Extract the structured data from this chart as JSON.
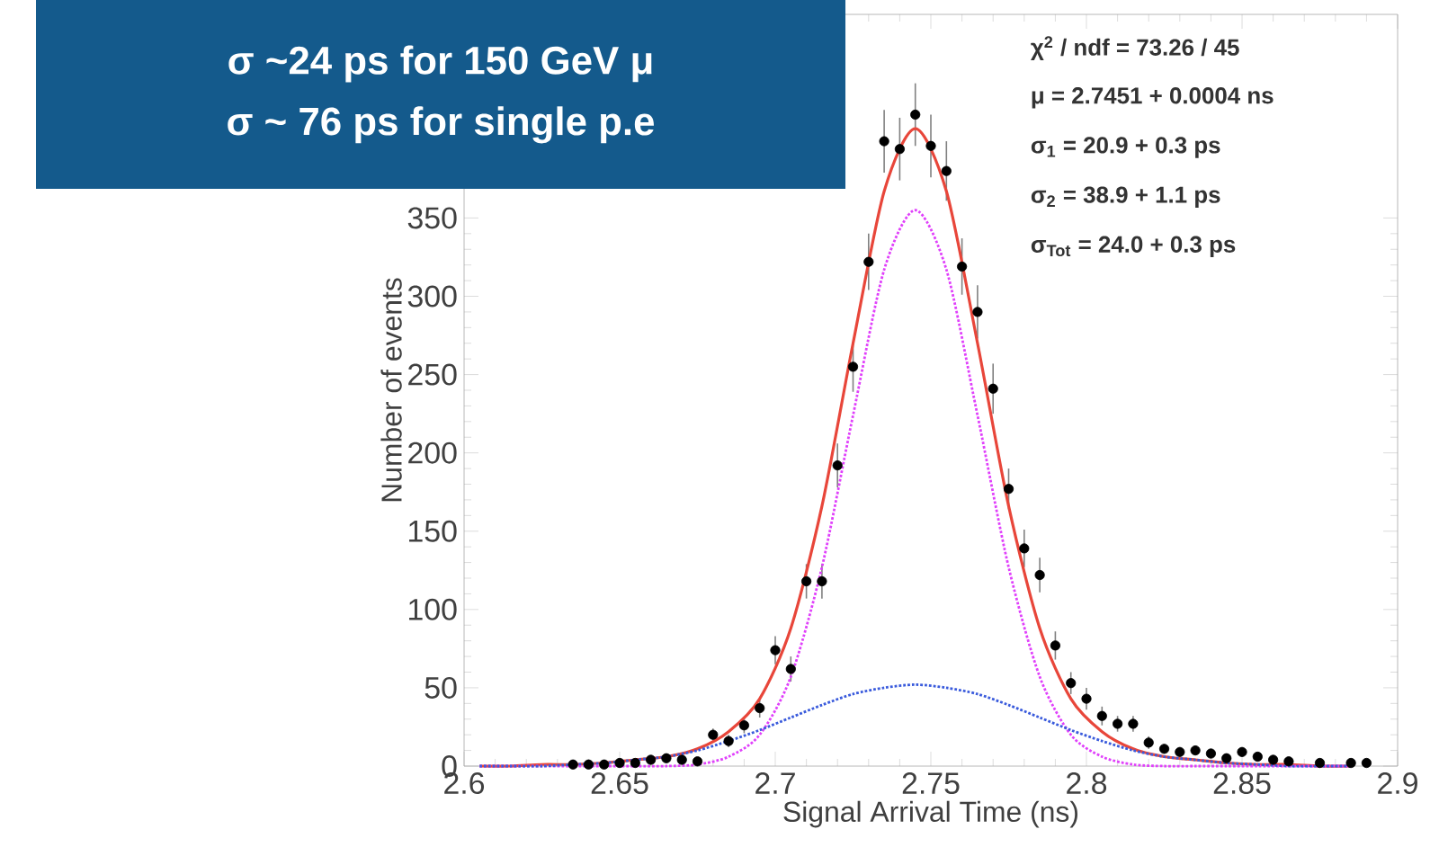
{
  "chart_data": {
    "type": "scatter",
    "title": "σ ~24 ps for 150 GeV μ",
    "subtitle": "σ ~ 76 ps for single p.e",
    "xlabel": "Signal Arrival Time (ns)",
    "ylabel": "Number of events",
    "xlim": [
      2.6,
      2.9
    ],
    "xticks": [
      2.6,
      2.65,
      2.7,
      2.75,
      2.8,
      2.85,
      2.9
    ],
    "ylim": [
      0,
      480
    ],
    "yticks": [
      0,
      50,
      100,
      150,
      200,
      250,
      300,
      350
    ],
    "grid": false,
    "annotations": [
      "χ$^{2}$ / ndf = 73.26 / 45",
      "μ = 2.7451 + 0.0004 ns",
      "σ$_{1}$ = 20.9 + 0.3 ps",
      "σ$_{2}$ = 38.9 + 1.1 ps",
      "σ$_{Tot}$ = 24.0 + 0.3 ps"
    ],
    "series": [
      {
        "color": "#000000",
        "marker": "circle",
        "x": [
          2.635,
          2.64,
          2.645,
          2.65,
          2.655,
          2.66,
          2.665,
          2.67,
          2.675,
          2.68,
          2.685,
          2.69,
          2.695,
          2.7,
          2.705,
          2.71,
          2.715,
          2.72,
          2.725,
          2.73,
          2.735,
          2.74,
          2.745,
          2.75,
          2.755,
          2.76,
          2.765,
          2.77,
          2.775,
          2.78,
          2.785,
          2.79,
          2.795,
          2.8,
          2.805,
          2.81,
          2.815,
          2.82,
          2.825,
          2.83,
          2.835,
          2.84,
          2.845,
          2.85,
          2.855,
          2.86,
          2.865,
          2.875,
          2.885,
          2.89
        ],
        "values": [
          1,
          1,
          1,
          2,
          2,
          4,
          5,
          4,
          3,
          20,
          16,
          26,
          37,
          74,
          62,
          118,
          118,
          192,
          255,
          322,
          399,
          394,
          416,
          396,
          380,
          319,
          290,
          241,
          177,
          139,
          122,
          77,
          53,
          43,
          32,
          27,
          27,
          15,
          11,
          9,
          10,
          8,
          5,
          9,
          6,
          4,
          3,
          2,
          2,
          2
        ],
        "errors": [
          null,
          null,
          null,
          null,
          null,
          2,
          2,
          2,
          2,
          4,
          4,
          5,
          6,
          9,
          8,
          11,
          11,
          14,
          16,
          18,
          20,
          20,
          20,
          20,
          19,
          18,
          17,
          16,
          13,
          12,
          11,
          9,
          7,
          7,
          6,
          5,
          5,
          4,
          3,
          3,
          3,
          3,
          2,
          3,
          2,
          2,
          2,
          null,
          null,
          null
        ]
      },
      {
        "type": "line",
        "color": "#e8463a",
        "marker": "none",
        "line_style": "solid",
        "x": [
          2.605,
          2.615,
          2.625,
          2.635,
          2.645,
          2.655,
          2.665,
          2.675,
          2.685,
          2.695,
          2.705,
          2.715,
          2.725,
          2.735,
          2.745,
          2.755,
          2.765,
          2.775,
          2.785,
          2.795,
          2.805,
          2.815,
          2.825,
          2.835,
          2.845,
          2.855,
          2.865,
          2.875,
          2.885
        ],
        "values": [
          0,
          0,
          1,
          1,
          2,
          4,
          6,
          11,
          22,
          43,
          88,
          166,
          270,
          367,
          407,
          367,
          270,
          166,
          88,
          43,
          22,
          11,
          6,
          4,
          2,
          1,
          1,
          0,
          0
        ]
      },
      {
        "type": "line",
        "color": "#e040fb",
        "marker": "none",
        "line_style": "dotted",
        "x": [
          2.605,
          2.615,
          2.625,
          2.635,
          2.645,
          2.655,
          2.665,
          2.675,
          2.685,
          2.695,
          2.705,
          2.715,
          2.725,
          2.735,
          2.745,
          2.755,
          2.765,
          2.775,
          2.785,
          2.795,
          2.805,
          2.815,
          2.825,
          2.835,
          2.845,
          2.855,
          2.865,
          2.875,
          2.885
        ],
        "values": [
          0,
          0,
          0,
          0,
          0,
          0,
          0,
          1,
          6,
          20,
          57,
          127,
          224,
          317,
          355,
          317,
          224,
          127,
          57,
          20,
          6,
          1,
          0,
          0,
          0,
          0,
          0,
          0,
          0
        ]
      },
      {
        "type": "line",
        "color": "#3a5bdc",
        "marker": "none",
        "line_style": "dotted",
        "x": [
          2.605,
          2.615,
          2.625,
          2.635,
          2.645,
          2.655,
          2.665,
          2.675,
          2.685,
          2.695,
          2.705,
          2.715,
          2.725,
          2.735,
          2.745,
          2.755,
          2.765,
          2.775,
          2.785,
          2.795,
          2.805,
          2.815,
          2.825,
          2.835,
          2.845,
          2.855,
          2.865,
          2.875,
          2.885
        ],
        "values": [
          0,
          0,
          0,
          1,
          2,
          4,
          6,
          10,
          16,
          23,
          31,
          39,
          46,
          50,
          52,
          50,
          46,
          39,
          31,
          23,
          16,
          10,
          6,
          4,
          2,
          1,
          0,
          0,
          0
        ]
      }
    ]
  }
}
